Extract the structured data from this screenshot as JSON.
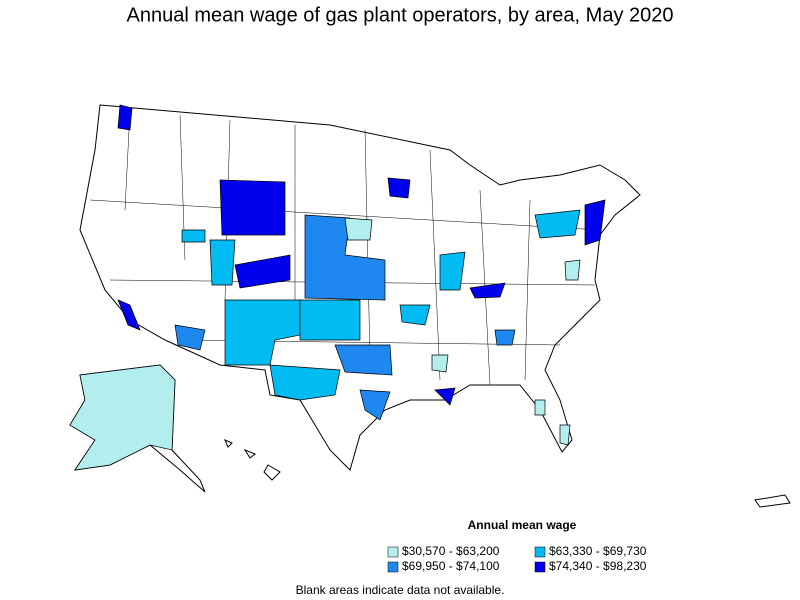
{
  "title": "Annual mean wage of gas plant operators, by area, May 2020",
  "legend": {
    "title": "Annual mean wage",
    "items": [
      {
        "label": "$30,570 - $63,200",
        "color": "#b2eeee"
      },
      {
        "label": "$63,330 - $69,730",
        "color": "#00bcf2"
      },
      {
        "label": "$69,950 - $74,100",
        "color": "#1e88f0"
      },
      {
        "label": "$74,340 - $98,230",
        "color": "#0000ee"
      }
    ]
  },
  "note": "Blank areas indicate data not available."
}
